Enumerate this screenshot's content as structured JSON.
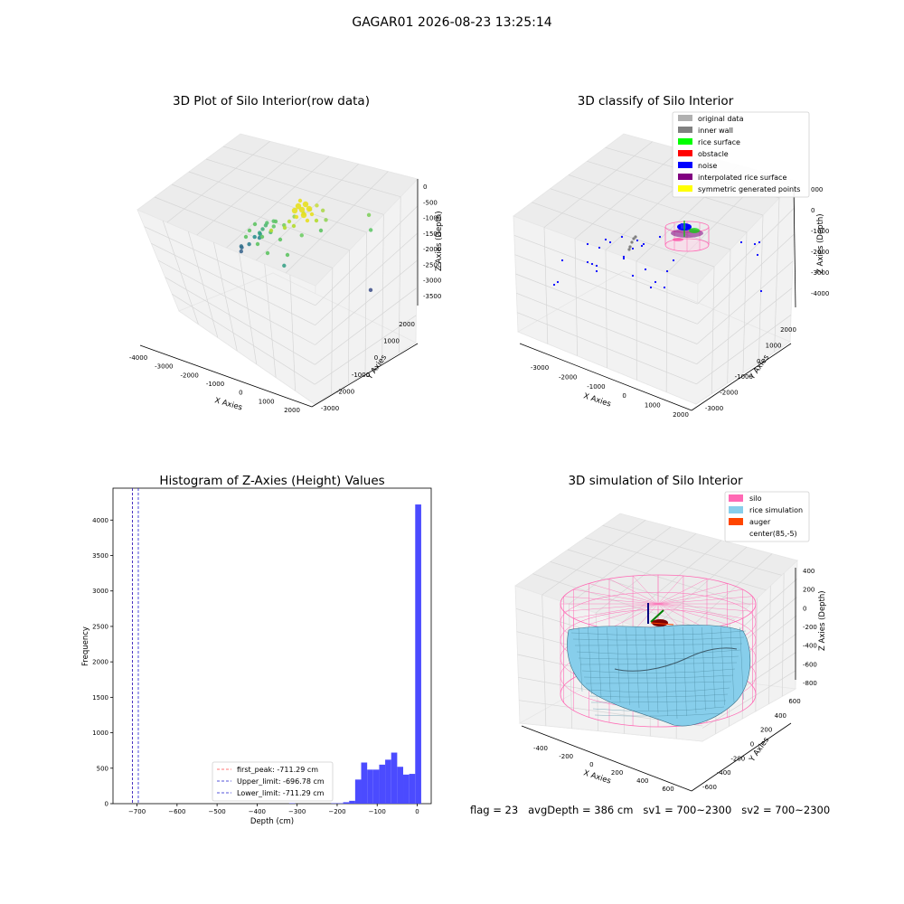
{
  "suptitle": "GAGAR01 2026-08-23 13:25:14",
  "footer": "flag = 23   avgDepth = 386 cm   sv1 = 700~2300   sv2 = 700~2300",
  "colors": {
    "histogram_bar": "#4b4bff",
    "first_peak_line": "#ff4b4b",
    "limit_lines": "#1f1fd0",
    "silo_wire": "#ff69b4",
    "rice_sim": "#87ceeb",
    "auger": "#ff4500",
    "original_data": "#b0b0b0",
    "inner_wall": "#808080",
    "rice_surface": "#00ff00",
    "obstacle": "#ff0000",
    "noise": "#0000ff",
    "interpolated_rice_surface": "#800080",
    "symmetric_generated_points": "#ffff00"
  },
  "chart_data": [
    {
      "type": "scatter",
      "title": "3D Plot of Silo Interior(row data)",
      "xlabel": "X Axies",
      "ylabel": "Y Axies",
      "zlabel": "Z Axies (Depth)",
      "x_ticks": [
        "-4000",
        "-3000",
        "-2000",
        "-1000",
        "0",
        "1000",
        "2000"
      ],
      "y_ticks": [
        "-3000",
        "-2000",
        "-1000",
        "0",
        "1000",
        "2000"
      ],
      "z_ticks": [
        "0",
        "-500",
        "-1000",
        "-1500",
        "-2000",
        "-2500",
        "-3000",
        "-3500"
      ],
      "xlim": [
        -4000,
        2500
      ],
      "ylim": [
        -3000,
        2500
      ],
      "zlim": [
        -3700,
        200
      ],
      "colormap": "viridis (by depth)",
      "points_estimated": [
        {
          "x": -3500,
          "y": 1200,
          "z": -2600
        },
        {
          "x": -3450,
          "y": 1100,
          "z": -2650
        },
        {
          "x": -3300,
          "y": 900,
          "z": -2450
        },
        {
          "x": -2900,
          "y": 800,
          "z": -2300
        },
        {
          "x": -2700,
          "y": 1100,
          "z": -2200
        },
        {
          "x": -2600,
          "y": 700,
          "z": -2050
        },
        {
          "x": -2300,
          "y": 600,
          "z": -1900
        },
        {
          "x": -2100,
          "y": 300,
          "z": -1750
        },
        {
          "x": -1900,
          "y": 200,
          "z": -1600
        },
        {
          "x": -1700,
          "y": 100,
          "z": -1450
        },
        {
          "x": -1500,
          "y": -100,
          "z": -1300
        },
        {
          "x": -1300,
          "y": 0,
          "z": -1250
        },
        {
          "x": -1200,
          "y": -300,
          "z": -1400
        },
        {
          "x": -1000,
          "y": -400,
          "z": -1200
        },
        {
          "x": -500,
          "y": -500,
          "z": -1050
        },
        {
          "x": -300,
          "y": -200,
          "z": -900
        },
        {
          "x": 0,
          "y": -100,
          "z": -800
        },
        {
          "x": 200,
          "y": 0,
          "z": -700
        },
        {
          "x": 400,
          "y": 100,
          "z": -600
        },
        {
          "x": 500,
          "y": 300,
          "z": -750
        },
        {
          "x": 700,
          "y": 200,
          "z": -900
        },
        {
          "x": 300,
          "y": -600,
          "z": -1100
        },
        {
          "x": -200,
          "y": -900,
          "z": -1800
        },
        {
          "x": 1500,
          "y": 1500,
          "z": -1000
        },
        {
          "x": 1800,
          "y": 1200,
          "z": -1200
        },
        {
          "x": 1200,
          "y": 2000,
          "z": -2900
        }
      ]
    },
    {
      "type": "scatter",
      "title": "3D classify of Silo Interior",
      "xlabel": "X Axies",
      "ylabel": "Y Axies",
      "zlabel": "Z Axies (Depth)",
      "x_ticks": [
        "-3000",
        "-2000",
        "-1000",
        "0",
        "1000",
        "2000"
      ],
      "y_ticks": [
        "-3000",
        "-2000",
        "-1000",
        "0",
        "1000",
        "2000"
      ],
      "z_ticks": [
        "000",
        "0",
        "-1000",
        "-2000",
        "-3000",
        "-4000"
      ],
      "legend": [
        {
          "label": "original data",
          "color": "#b0b0b0"
        },
        {
          "label": "inner wall",
          "color": "#808080"
        },
        {
          "label": "rice surface",
          "color": "#00ff00"
        },
        {
          "label": "obstacle",
          "color": "#ff0000"
        },
        {
          "label": "noise",
          "color": "#0000ff"
        },
        {
          "label": "interpolated rice surface",
          "color": "#800080"
        },
        {
          "label": "symmetric generated points",
          "color": "#ffff00"
        }
      ],
      "legend_loc": "upper right"
    },
    {
      "type": "bar",
      "title": "Histogram of Z-Axies (Height) Values",
      "xlabel": "Depth (cm)",
      "ylabel": "Frequency",
      "xlim": [
        -760,
        35
      ],
      "ylim": [
        0,
        4450
      ],
      "x_ticks": [
        -700,
        -600,
        -500,
        -400,
        -300,
        -200,
        -100,
        0
      ],
      "y_ticks": [
        0,
        500,
        1000,
        1500,
        2000,
        2500,
        3000,
        3500,
        4000
      ],
      "bin_width": 15,
      "bins_estimated": [
        {
          "start": -320,
          "count": 5
        },
        {
          "start": -215,
          "count": 5
        },
        {
          "start": -200,
          "count": 5
        },
        {
          "start": -185,
          "count": 20
        },
        {
          "start": -170,
          "count": 40
        },
        {
          "start": -155,
          "count": 340
        },
        {
          "start": -140,
          "count": 580
        },
        {
          "start": -125,
          "count": 480
        },
        {
          "start": -110,
          "count": 480
        },
        {
          "start": -95,
          "count": 550
        },
        {
          "start": -80,
          "count": 620
        },
        {
          "start": -65,
          "count": 720
        },
        {
          "start": -50,
          "count": 520
        },
        {
          "start": -35,
          "count": 410
        },
        {
          "start": -20,
          "count": 420
        },
        {
          "start": -5,
          "count": 4220
        }
      ],
      "vlines": [
        {
          "label": "first_peak: -711.29 cm",
          "x": -711.29,
          "style": "dashed",
          "color": "#ff4b4b"
        },
        {
          "label": "Upper_limit: -696.78 cm",
          "x": -696.78,
          "style": "dashed",
          "color": "#1f1fd0"
        },
        {
          "label": "Lower_limit: -711.29 cm",
          "x": -711.29,
          "style": "dashed",
          "color": "#1f1fd0"
        }
      ],
      "legend_loc": "lower center"
    },
    {
      "type": "surface",
      "title": "3D simulation of Silo Interior",
      "xlabel": "X Axies",
      "ylabel": "Y Axies",
      "zlabel": "Z Axies (Depth)",
      "x_ticks": [
        "-400",
        "-200",
        "0",
        "200",
        "400",
        "600"
      ],
      "y_ticks": [
        "-600",
        "-400",
        "-200",
        "0",
        "200",
        "400",
        "600"
      ],
      "z_ticks": [
        "400",
        "200",
        "0",
        "-200",
        "-400",
        "-600",
        "-800"
      ],
      "legend": [
        {
          "label": "silo",
          "color": "#ff69b4"
        },
        {
          "label": "rice simulation",
          "color": "#87ceeb"
        },
        {
          "label": "auger",
          "color": "#ff4500"
        },
        {
          "label": "center(85,-5)",
          "color": "#ffffff"
        }
      ],
      "legend_loc": "upper right"
    }
  ]
}
